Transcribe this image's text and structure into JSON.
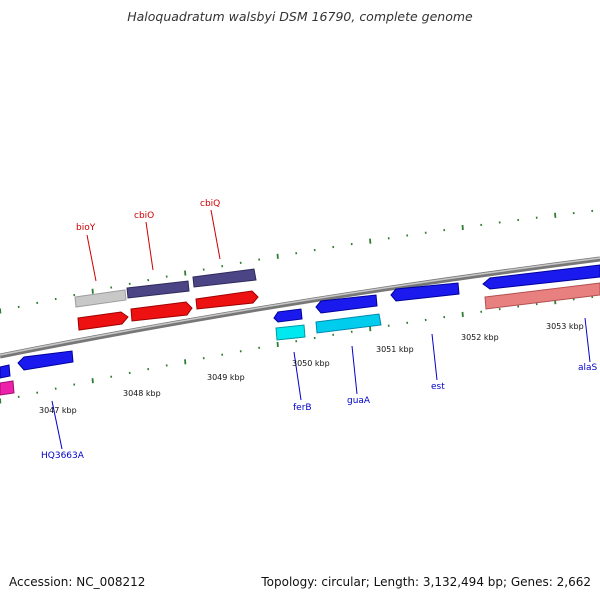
{
  "title": "Haloquadratum walsbyi DSM 16790, complete genome",
  "footer": {
    "accession": "Accession: NC_008212",
    "stats": "Topology: circular; Length: 3,132,494 bp; Genes: 2,662"
  },
  "colors": {
    "backbone": "#8f8f8f",
    "tick": "#2e7d32",
    "label_forward": "#cc0000",
    "label_reverse": "#0000cc"
  },
  "kbp_labels": [
    "3047 kbp",
    "3048 kbp",
    "3049 kbp",
    "3050 kbp",
    "3051 kbp",
    "3052 kbp",
    "3053 kbp"
  ],
  "gene_labels": {
    "bioY": "bioY",
    "cbiO": "cbiO",
    "cbiQ": "cbiQ",
    "ferB": "ferB",
    "guaA": "guaA",
    "est": "est",
    "alaS": "alaS",
    "hq3663a": "HQ3663A"
  }
}
